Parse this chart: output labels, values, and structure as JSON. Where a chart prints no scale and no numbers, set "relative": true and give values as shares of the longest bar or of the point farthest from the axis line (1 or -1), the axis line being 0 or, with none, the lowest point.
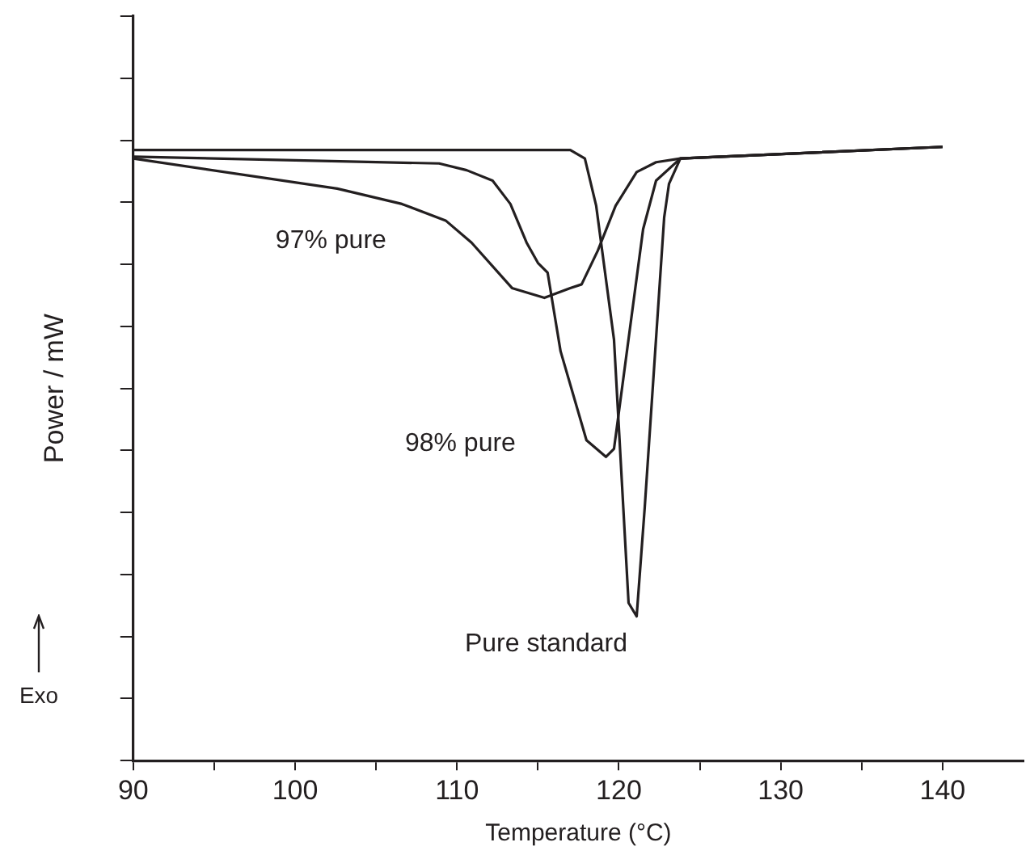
{
  "chart_data": {
    "type": "line",
    "relative": true,
    "xlabel": "Temperature (°C)",
    "ylabel": "Power / mW",
    "xlim": [
      90,
      145
    ],
    "xticks": [
      90,
      {
        "value": 95,
        "label": null
      },
      100,
      {
        "value": 105,
        "label": null
      },
      110,
      {
        "value": 115,
        "label": null
      },
      120,
      {
        "value": 125,
        "label": null
      },
      130,
      {
        "value": 135,
        "label": null
      },
      140
    ],
    "grid": false,
    "legend": false,
    "marker": "none",
    "line_style": "solid",
    "series": [
      {
        "name": "Pure standard",
        "color": "#231f20",
        "x": [
          90,
          117.0,
          117.9,
          118.6,
          119.7,
          120.6,
          121.1,
          121.6,
          122.8,
          123.1,
          123.8,
          140
        ],
        "values": [
          0.995,
          0.995,
          0.981,
          0.904,
          0.686,
          0.257,
          0.235,
          0.413,
          0.885,
          0.94,
          0.981,
          1
        ]
      },
      {
        "name": "98% pure",
        "color": "#231f20",
        "x": [
          90,
          108.9,
          110.6,
          112.2,
          113.3,
          114.3,
          115.0,
          115.6,
          116.4,
          118.0,
          119.2,
          119.7,
          121.5,
          122.3,
          123.8,
          140
        ],
        "values": [
          0.984,
          0.973,
          0.962,
          0.945,
          0.907,
          0.844,
          0.811,
          0.795,
          0.667,
          0.522,
          0.495,
          0.508,
          0.866,
          0.945,
          0.981,
          1
        ]
      },
      {
        "name": "97% pure",
        "color": "#231f20",
        "x": [
          90,
          102.6,
          106.6,
          109.3,
          110.9,
          113.4,
          115.4,
          117.0,
          117.7,
          118.7,
          119.8,
          121.1,
          122.3,
          123.8,
          140
        ],
        "values": [
          0.981,
          0.932,
          0.907,
          0.88,
          0.844,
          0.77,
          0.754,
          0.77,
          0.776,
          0.831,
          0.904,
          0.959,
          0.975,
          0.981,
          1
        ]
      }
    ],
    "annotations": [
      "Exo"
    ]
  }
}
